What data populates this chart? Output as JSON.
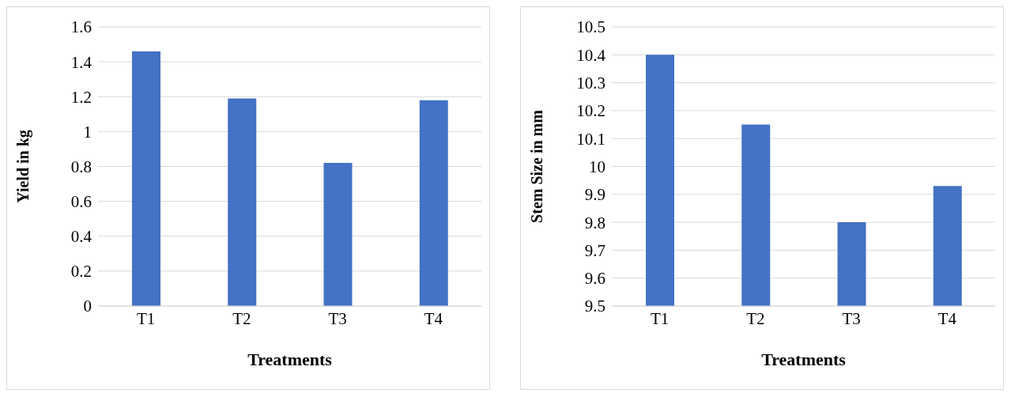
{
  "chart_data": [
    {
      "type": "bar",
      "categories": [
        "T1",
        "T2",
        "T3",
        "T4"
      ],
      "values": [
        1.46,
        1.19,
        0.82,
        1.18
      ],
      "color": "#4472c4",
      "xlabel": "Treatments",
      "ylabel": "Yield in kg",
      "ylim": [
        0,
        1.6
      ],
      "yticks": [
        0,
        0.2,
        0.4,
        0.6,
        0.8,
        1,
        1.2,
        1.4,
        1.6
      ],
      "grid": "y"
    },
    {
      "type": "bar",
      "categories": [
        "T1",
        "T2",
        "T3",
        "T4"
      ],
      "values": [
        10.4,
        10.15,
        9.8,
        9.93
      ],
      "color": "#4472c4",
      "xlabel": "Treatments",
      "ylabel": "Stem Size in mm",
      "ylim": [
        9.5,
        10.5
      ],
      "yticks": [
        9.5,
        9.6,
        9.7,
        9.8,
        9.9,
        10,
        10.1,
        10.2,
        10.3,
        10.4,
        10.5
      ],
      "grid": "y"
    }
  ]
}
